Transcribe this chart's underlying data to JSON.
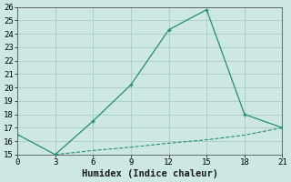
{
  "xlabel": "Humidex (Indice chaleur)",
  "line1_x": [
    0,
    3,
    6,
    9,
    12,
    15,
    18,
    21
  ],
  "line1_y": [
    16.5,
    15.0,
    17.5,
    20.2,
    24.3,
    25.8,
    18.0,
    17.0
  ],
  "line2_x": [
    3,
    6,
    9,
    12,
    15,
    18,
    21
  ],
  "line2_y": [
    15.0,
    15.3,
    15.55,
    15.85,
    16.1,
    16.45,
    17.0
  ],
  "line_color": "#2a8a78",
  "bg_color": "#cde8e2",
  "grid_color": "#aed0c8",
  "xlim": [
    0,
    21
  ],
  "ylim": [
    15,
    26
  ],
  "xticks": [
    0,
    3,
    6,
    9,
    12,
    15,
    18,
    21
  ],
  "yticks": [
    15,
    16,
    17,
    18,
    19,
    20,
    21,
    22,
    23,
    24,
    25,
    26
  ],
  "tick_label_fontsize": 6.5,
  "xlabel_fontsize": 7.5
}
